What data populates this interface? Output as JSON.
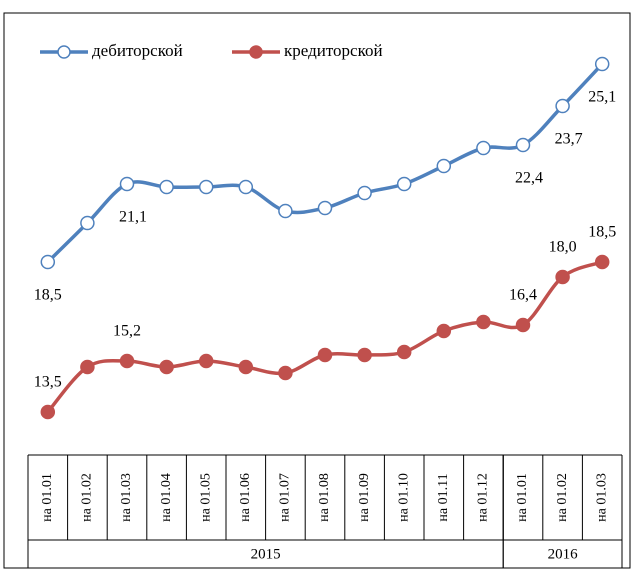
{
  "chart_data": {
    "type": "line",
    "categories": [
      "на 01.01",
      "на 01.02",
      "на 01.03",
      "на 01.04",
      "на 01.05",
      "на 01.06",
      "на 01.07",
      "на 01.08",
      "на 01.09",
      "на 01.10",
      "на 01.11",
      "на 01.12",
      "на 01.01",
      "на 01.02",
      "на 01.03"
    ],
    "groups": [
      {
        "name": "2015",
        "count": 12
      },
      {
        "name": "2016",
        "count": 3
      }
    ],
    "series": [
      {
        "name": "дебиторской",
        "color": "#4f81bd",
        "marker_fill": "#ffffff",
        "values": [
          18.5,
          19.8,
          21.1,
          21.0,
          21.0,
          21.0,
          20.2,
          20.3,
          20.8,
          21.1,
          21.7,
          22.3,
          22.4,
          23.7,
          25.1
        ],
        "value_labels": [
          "18,5",
          null,
          "21,1",
          null,
          null,
          null,
          null,
          null,
          null,
          null,
          null,
          null,
          "22,4",
          "23,7",
          "25,1"
        ]
      },
      {
        "name": "кредиторской",
        "color": "#c0504d",
        "marker_fill": "#c0504d",
        "values": [
          13.5,
          15.0,
          15.2,
          15.0,
          15.2,
          15.0,
          14.8,
          15.4,
          15.4,
          15.5,
          16.2,
          16.5,
          16.4,
          18.0,
          18.5
        ],
        "value_labels": [
          "13,5",
          null,
          "15,2",
          null,
          null,
          null,
          null,
          null,
          null,
          null,
          null,
          null,
          "16,4",
          "18,0",
          "18,5"
        ]
      }
    ],
    "legend": "top-left"
  }
}
